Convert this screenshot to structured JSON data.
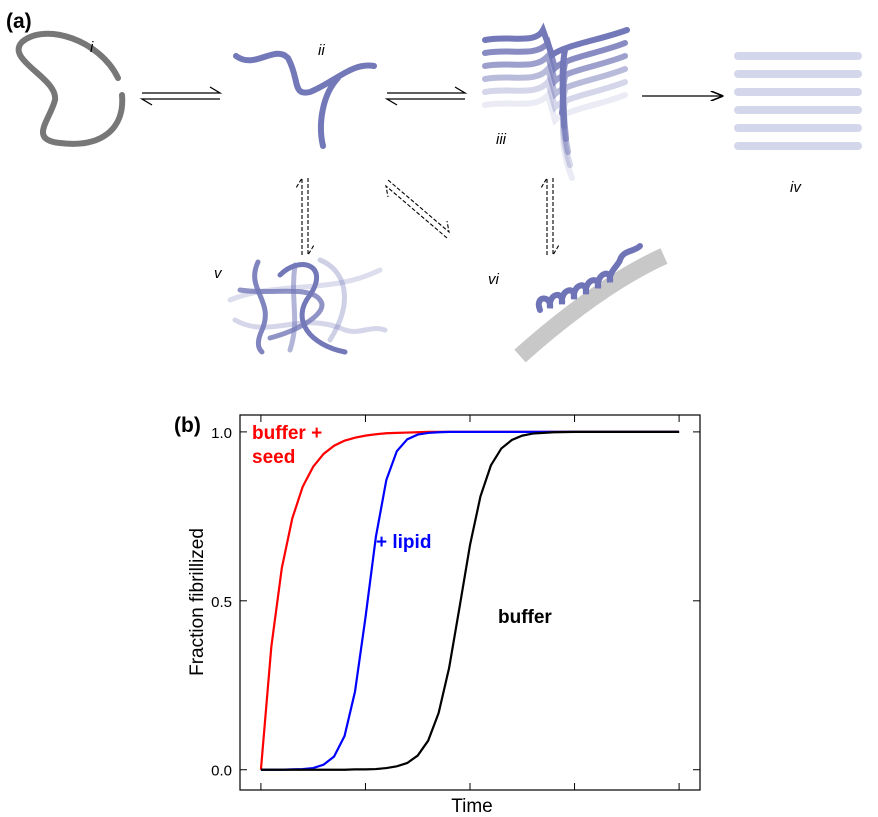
{
  "diagram": {
    "panel_label": "(a)",
    "states": [
      "i",
      "ii",
      "iii",
      "iv",
      "v",
      "vi"
    ]
  },
  "chart_data": {
    "type": "line",
    "panel_label": "(b)",
    "xlabel": "Time",
    "ylabel": "Fraction fibrillized",
    "x": [
      0,
      0.1,
      0.2,
      0.3,
      0.4,
      0.5,
      0.6,
      0.7,
      0.8,
      0.9,
      1.0,
      1.1,
      1.2,
      1.3,
      1.4,
      1.5,
      1.6,
      1.7,
      1.8,
      1.9,
      2.0,
      2.1,
      2.2,
      2.3,
      2.4,
      2.5,
      2.6,
      2.8,
      3.0,
      3.2,
      3.5,
      4.0
    ],
    "series": [
      {
        "name": "buffer + seed",
        "color": "#ff0000",
        "values": [
          0,
          0.365,
          0.597,
          0.744,
          0.838,
          0.897,
          0.935,
          0.959,
          0.974,
          0.983,
          0.989,
          0.993,
          0.996,
          0.997,
          0.998,
          0.999,
          1,
          1,
          1,
          1,
          1,
          1,
          1,
          1,
          1,
          1,
          1,
          1,
          1,
          1,
          1,
          1
        ]
      },
      {
        "name": "+ lipid",
        "color": "#0000ff",
        "values": [
          0,
          0,
          0,
          0.001,
          0.002,
          0.005,
          0.015,
          0.039,
          0.1,
          0.231,
          0.45,
          0.69,
          0.858,
          0.943,
          0.978,
          0.992,
          0.997,
          0.999,
          1,
          1,
          1,
          1,
          1,
          1,
          1,
          1,
          1,
          1,
          1,
          1,
          1,
          1
        ]
      },
      {
        "name": "buffer",
        "color": "#000000",
        "values": [
          0,
          0,
          0,
          0,
          0,
          0,
          0,
          0,
          0,
          0.001,
          0.001,
          0.002,
          0.005,
          0.01,
          0.02,
          0.042,
          0.086,
          0.168,
          0.301,
          0.481,
          0.665,
          0.809,
          0.901,
          0.951,
          0.976,
          0.989,
          0.995,
          0.999,
          1,
          1,
          1,
          1
        ]
      }
    ],
    "xlim": [
      -0.2,
      4.2
    ],
    "ylim": [
      -0.06,
      1.05
    ],
    "xticks": [
      0,
      1,
      2,
      3,
      4
    ],
    "yticks": [
      {
        "value": 0,
        "label": "0.0"
      },
      {
        "value": 0.5,
        "label": "0.5"
      },
      {
        "value": 1,
        "label": "1.0"
      }
    ]
  }
}
